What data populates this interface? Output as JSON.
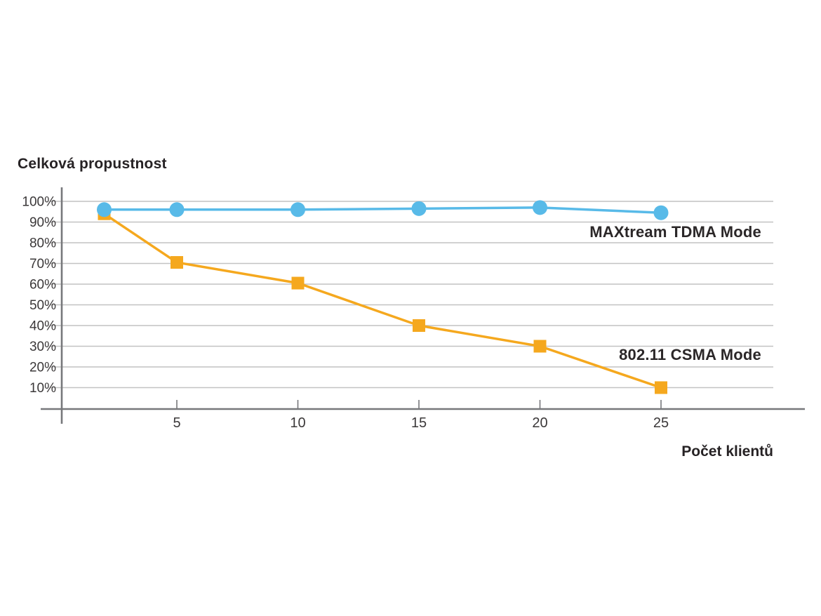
{
  "chart_data": {
    "type": "line",
    "title": "Celková propustnost",
    "xlabel": "Počet klientů",
    "ylabel": "",
    "x": [
      2,
      5,
      10,
      15,
      20,
      25
    ],
    "series": [
      {
        "name": "MAXtream TDMA Mode",
        "values": [
          96,
          96,
          96,
          96.5,
          97,
          94.5
        ],
        "color": "#58BAE8",
        "marker": "circle"
      },
      {
        "name": "802.11 CSMA Mode",
        "values": [
          94,
          70.5,
          60.5,
          40,
          30,
          10
        ],
        "color": "#F5A81E",
        "marker": "square"
      }
    ],
    "x_ticks": [
      5,
      10,
      15,
      20,
      25
    ],
    "y_ticks": [
      "100%",
      "90%",
      "80%",
      "70%",
      "60%",
      "50%",
      "40%",
      "30%",
      "20%",
      "10%"
    ],
    "y_tick_values": [
      100,
      90,
      80,
      70,
      60,
      50,
      40,
      30,
      20,
      10
    ],
    "xlim": [
      -0.6,
      31
    ],
    "ylim": [
      0,
      107
    ],
    "grid": "horizontal-only",
    "legend_position": "inline-right-of-plot"
  },
  "colors": {
    "axis": "#77787B",
    "grid": "#C2C2C2",
    "tick_text": "#3B3839",
    "title_text": "#262224",
    "background": "#FFFFFF"
  }
}
